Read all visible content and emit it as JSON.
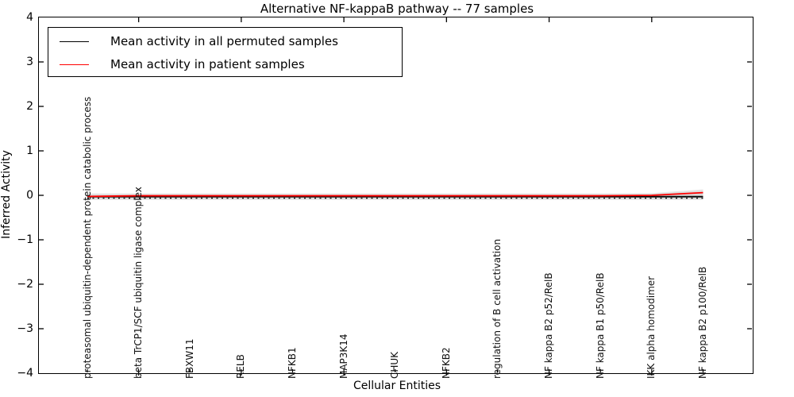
{
  "figure": {
    "title": "Alternative NF-kappaB pathway -- 77 samples",
    "xlabel": "Cellular Entities",
    "ylabel": "Inferred Activity"
  },
  "legend": {
    "items": [
      {
        "label": "Mean activity in all permuted samples",
        "color": "#000000"
      },
      {
        "label": "Mean activity in patient samples",
        "color": "#ff0000"
      }
    ]
  },
  "chart_data": {
    "type": "line",
    "title": "Alternative NF-kappaB pathway -- 77 samples",
    "xlabel": "Cellular Entities",
    "ylabel": "Inferred Activity",
    "ylim": [
      -4,
      4
    ],
    "ytick_labels": [
      "4",
      "3",
      "2",
      "1",
      "0",
      "−1",
      "−2",
      "−3",
      "−4"
    ],
    "ytick_values": [
      4,
      3,
      2,
      1,
      0,
      -1,
      -2,
      -3,
      -4
    ],
    "grid": false,
    "legend_position": "upper left",
    "categories": [
      "proteasomal ubiquitin-dependent protein catabolic process",
      "beta TrCP1/SCF ubiquitin ligase complex",
      "FBXW11",
      "RELB",
      "NFKB1",
      "MAP3K14",
      "CHUK",
      "NFKB2",
      "regulation of B cell activation",
      "NF kappa B2 p52/RelB",
      "NF kappa B1 p50/RelB",
      "IKK alpha homodimer",
      "NF kappa B2 p100/RelB"
    ],
    "series": [
      {
        "name": "Mean activity in all permuted samples",
        "color": "#000000",
        "style": "solid",
        "values": [
          -0.03,
          -0.03,
          -0.03,
          -0.03,
          -0.03,
          -0.03,
          -0.03,
          -0.03,
          -0.03,
          -0.03,
          -0.03,
          -0.03,
          -0.03
        ]
      },
      {
        "name": "Mean activity in patient samples",
        "color": "#ff0000",
        "style": "solid",
        "values": [
          -0.025,
          -0.01,
          -0.01,
          -0.01,
          -0.01,
          -0.01,
          -0.01,
          -0.01,
          -0.01,
          -0.01,
          -0.01,
          0.0,
          0.06
        ]
      },
      {
        "name": "permuted reference (dotted)",
        "color": "#000000",
        "style": "dotted",
        "values": [
          -0.065,
          -0.065,
          -0.065,
          -0.065,
          -0.065,
          -0.065,
          -0.065,
          -0.065,
          -0.065,
          -0.065,
          -0.065,
          -0.065,
          -0.065
        ]
      }
    ],
    "bands": [
      {
        "name": "permuted activity spread (outer)",
        "color": "#e7e7e7",
        "upper": [
          0.045,
          0.045,
          0.045,
          0.045,
          0.045,
          0.045,
          0.045,
          0.045,
          0.045,
          0.045,
          0.045,
          0.05,
          0.135
        ],
        "lower": [
          -0.105,
          -0.105,
          -0.105,
          -0.105,
          -0.105,
          -0.105,
          -0.105,
          -0.105,
          -0.105,
          -0.105,
          -0.105,
          -0.105,
          -0.105
        ]
      },
      {
        "name": "permuted activity spread (inner)",
        "color": "#d9d9d9",
        "upper": [
          0.02,
          0.02,
          0.02,
          0.02,
          0.02,
          0.02,
          0.02,
          0.02,
          0.02,
          0.02,
          0.02,
          0.03,
          0.1
        ],
        "lower": [
          -0.08,
          -0.08,
          -0.08,
          -0.08,
          -0.08,
          -0.08,
          -0.08,
          -0.08,
          -0.08,
          -0.08,
          -0.08,
          -0.08,
          -0.08
        ]
      }
    ]
  }
}
